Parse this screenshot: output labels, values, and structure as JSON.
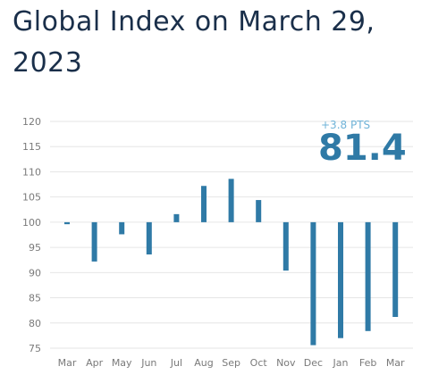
{
  "header": {
    "title": "Global Index on March 29, 2023"
  },
  "highlight": {
    "change": "+3.8 PTS",
    "value": "81.4"
  },
  "colors": {
    "bar": "#2f7aa6",
    "title": "#1a2f4a",
    "grid": "#e6e6e6",
    "axis_text": "#7a7a7a",
    "change": "#6fb3d8"
  },
  "chart_data": {
    "type": "bar",
    "subtype": "floating-change-from-baseline",
    "baseline": 100,
    "categories": [
      "Mar",
      "Apr",
      "May",
      "Jun",
      "Jul",
      "Aug",
      "Sep",
      "Oct",
      "Nov",
      "Dec",
      "Jan",
      "Feb",
      "Mar"
    ],
    "values": [
      99.6,
      92.2,
      97.6,
      93.6,
      101.6,
      107.2,
      108.6,
      104.4,
      90.4,
      75.6,
      77.0,
      78.4,
      81.2
    ],
    "ylim": [
      75,
      120
    ],
    "yticks": [
      75,
      80,
      85,
      90,
      95,
      100,
      105,
      110,
      115,
      120
    ],
    "grid": true,
    "title": "",
    "xlabel": "",
    "ylabel": ""
  }
}
